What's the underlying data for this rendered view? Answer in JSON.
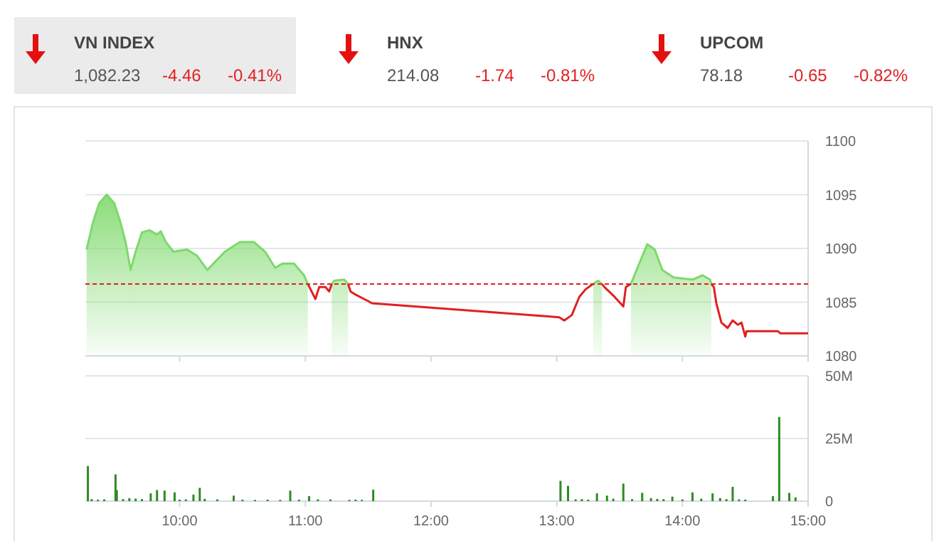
{
  "chart_data": [
    {
      "type": "other",
      "annotations": [
        "VN INDEX",
        "1,082.23",
        "-4.46",
        "-0.41%",
        "HNX",
        "214.08",
        "-1.74",
        "-0.81%",
        "UPCOM",
        "78.18",
        "-0.65",
        "-0.82%"
      ]
    },
    {
      "type": "line",
      "x": [
        9.26,
        9.31,
        9.36,
        9.42,
        9.48,
        9.53,
        9.57,
        9.61,
        9.65,
        9.7,
        9.76,
        9.82,
        9.85,
        9.89,
        9.95,
        10.06,
        10.14,
        10.22,
        10.27,
        10.36,
        10.48,
        10.59,
        10.68,
        10.76,
        10.82,
        10.91,
        10.99,
        11.02,
        11.08,
        11.11,
        11.16,
        11.19,
        11.21,
        11.23,
        11.31,
        11.34,
        11.36,
        11.4,
        11.5,
        11.53,
        13.02,
        13.06,
        13.12,
        13.18,
        13.23,
        13.29,
        13.33,
        13.36,
        13.38,
        13.46,
        13.53,
        13.55,
        13.59,
        13.65,
        13.72,
        13.78,
        13.84,
        13.93,
        14.08,
        14.16,
        14.22,
        14.23,
        14.25,
        14.27,
        14.31,
        14.36,
        14.4,
        14.44,
        14.47,
        14.5,
        14.51,
        14.76,
        14.78,
        15.0
      ],
      "series": [
        {
          "type": "area",
          "color": "#7ed96b",
          "values": [
            1089.9,
            1092.4,
            1094.2,
            1095.0,
            1094.2,
            1092.4,
            1090.6,
            1088.0,
            1089.7,
            1091.5,
            1091.7,
            1091.3,
            1091.6,
            1090.6,
            1089.7,
            1089.9,
            1089.3,
            1088.0,
            1088.6,
            1089.7,
            1090.6,
            1090.6,
            1089.7,
            1088.2,
            1088.6,
            1088.6,
            1087.5,
            1086.7,
            null,
            null,
            null,
            null,
            1086.7,
            1087.0,
            1087.1,
            1086.7,
            null,
            null,
            null,
            null,
            null,
            null,
            null,
            null,
            null,
            1086.7,
            1087.0,
            1086.7,
            null,
            null,
            null,
            null,
            1086.7,
            1088.4,
            1090.4,
            1089.9,
            1088.0,
            1087.3,
            1087.1,
            1087.5,
            1087.1,
            1086.7,
            null,
            null,
            null,
            null,
            null,
            null,
            null,
            null,
            null,
            null,
            null,
            null
          ]
        },
        {
          "type": "line",
          "color": "#e02020",
          "values": [
            null,
            null,
            null,
            null,
            null,
            null,
            null,
            null,
            null,
            null,
            null,
            null,
            null,
            null,
            null,
            null,
            null,
            null,
            null,
            null,
            null,
            null,
            null,
            null,
            null,
            null,
            null,
            1086.7,
            1085.3,
            1086.4,
            1086.4,
            1086.0,
            1086.7,
            null,
            null,
            1086.7,
            1086.0,
            1085.7,
            1085.1,
            1084.9,
            1083.6,
            1083.3,
            1083.8,
            1085.5,
            1086.2,
            1086.7,
            null,
            1086.7,
            1086.4,
            1085.5,
            1084.6,
            1086.4,
            1086.7,
            null,
            null,
            null,
            null,
            null,
            null,
            null,
            null,
            1086.7,
            1086.4,
            1084.9,
            1083.1,
            1082.6,
            1083.3,
            1082.9,
            1083.1,
            1081.8,
            1082.3,
            1082.3,
            1082.1,
            1082.1
          ]
        }
      ],
      "xlim": [
        9.25,
        15
      ],
      "xticks": [
        {
          "value": 10,
          "label": null
        },
        {
          "value": 11,
          "label": null
        },
        {
          "value": 12,
          "label": null
        },
        {
          "value": 13,
          "label": null
        },
        {
          "value": 14,
          "label": null
        },
        {
          "value": 15,
          "label": null
        }
      ],
      "ylim": [
        1080,
        1100
      ],
      "yticks": [
        1080,
        1085,
        1090,
        1095,
        1100
      ],
      "grid": "y",
      "tick_labels": "y",
      "ref_lines": [
        {
          "axis": "y",
          "value": 1086.69,
          "color": "#e02020",
          "line_style": "dashed"
        }
      ]
    },
    {
      "type": "bar",
      "color": "#2e8b22",
      "x": [
        9.27,
        9.3,
        9.35,
        9.4,
        9.49,
        9.5,
        9.55,
        9.6,
        9.65,
        9.7,
        9.77,
        9.82,
        9.88,
        9.96,
        10.0,
        10.05,
        10.11,
        10.16,
        10.2,
        10.3,
        10.43,
        10.5,
        10.6,
        10.7,
        10.8,
        10.88,
        10.95,
        11.03,
        11.1,
        11.2,
        11.35,
        11.4,
        11.45,
        11.54,
        13.03,
        13.09,
        13.15,
        13.2,
        13.25,
        13.32,
        13.4,
        13.45,
        13.53,
        13.6,
        13.68,
        13.75,
        13.8,
        13.85,
        13.92,
        14.0,
        14.08,
        14.15,
        14.24,
        14.3,
        14.35,
        14.4,
        14.45,
        14.5,
        14.72,
        14.77,
        14.85,
        14.9
      ],
      "values": [
        14.0,
        0.8,
        0.6,
        0.7,
        10.7,
        4.4,
        0.8,
        1.2,
        1.0,
        0.8,
        3.1,
        4.4,
        4.2,
        3.5,
        0.6,
        0.7,
        2.6,
        5.3,
        0.9,
        0.7,
        2.2,
        0.6,
        0.5,
        0.6,
        0.5,
        4.2,
        0.6,
        2.0,
        0.7,
        0.7,
        0.5,
        0.6,
        0.5,
        4.6,
        8.1,
        6.1,
        0.7,
        0.8,
        0.6,
        3.1,
        2.2,
        1.0,
        7.0,
        0.8,
        3.3,
        1.2,
        0.9,
        0.8,
        1.8,
        0.7,
        3.5,
        1.0,
        3.1,
        1.2,
        0.8,
        5.7,
        0.7,
        0.6,
        2.0,
        33.6,
        3.3,
        1.5
      ],
      "xlim": [
        9.25,
        15
      ],
      "xticks": [
        {
          "value": 10,
          "label": "10:00"
        },
        {
          "value": 11,
          "label": "11:00"
        },
        {
          "value": 12,
          "label": "12:00"
        },
        {
          "value": 13,
          "label": "13:00"
        },
        {
          "value": 14,
          "label": "14:00"
        },
        {
          "value": 15,
          "label": "15:00"
        }
      ],
      "ylim": [
        0,
        50
      ],
      "yticks": [
        0,
        {
          "value": 25,
          "label": "25M"
        },
        {
          "value": 50,
          "label": "50M"
        }
      ],
      "grid": "y"
    }
  ]
}
